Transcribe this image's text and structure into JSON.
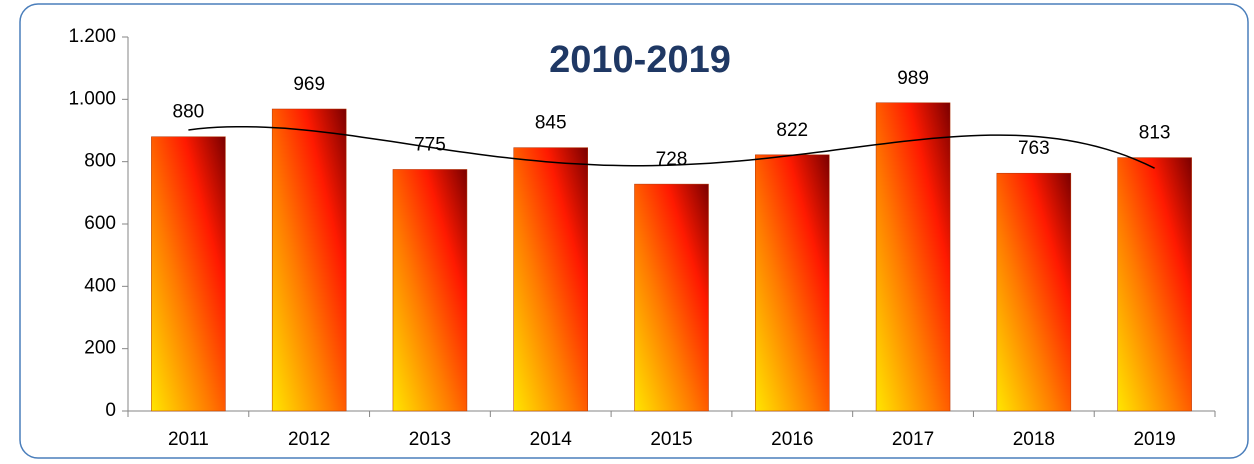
{
  "chart_data": {
    "type": "bar",
    "title": "2010-2019",
    "categories": [
      "2011",
      "2012",
      "2013",
      "2014",
      "2015",
      "2016",
      "2017",
      "2018",
      "2019"
    ],
    "values": [
      880,
      969,
      775,
      845,
      728,
      822,
      989,
      763,
      813
    ],
    "color": "#ff1a00",
    "ylim": [
      0,
      1200
    ],
    "yticks": [
      0,
      200,
      400,
      600,
      800,
      {
        "value": 1000,
        "label": "1.000"
      },
      {
        "value": 1200,
        "label": "1.200"
      }
    ],
    "trendline": true
  }
}
